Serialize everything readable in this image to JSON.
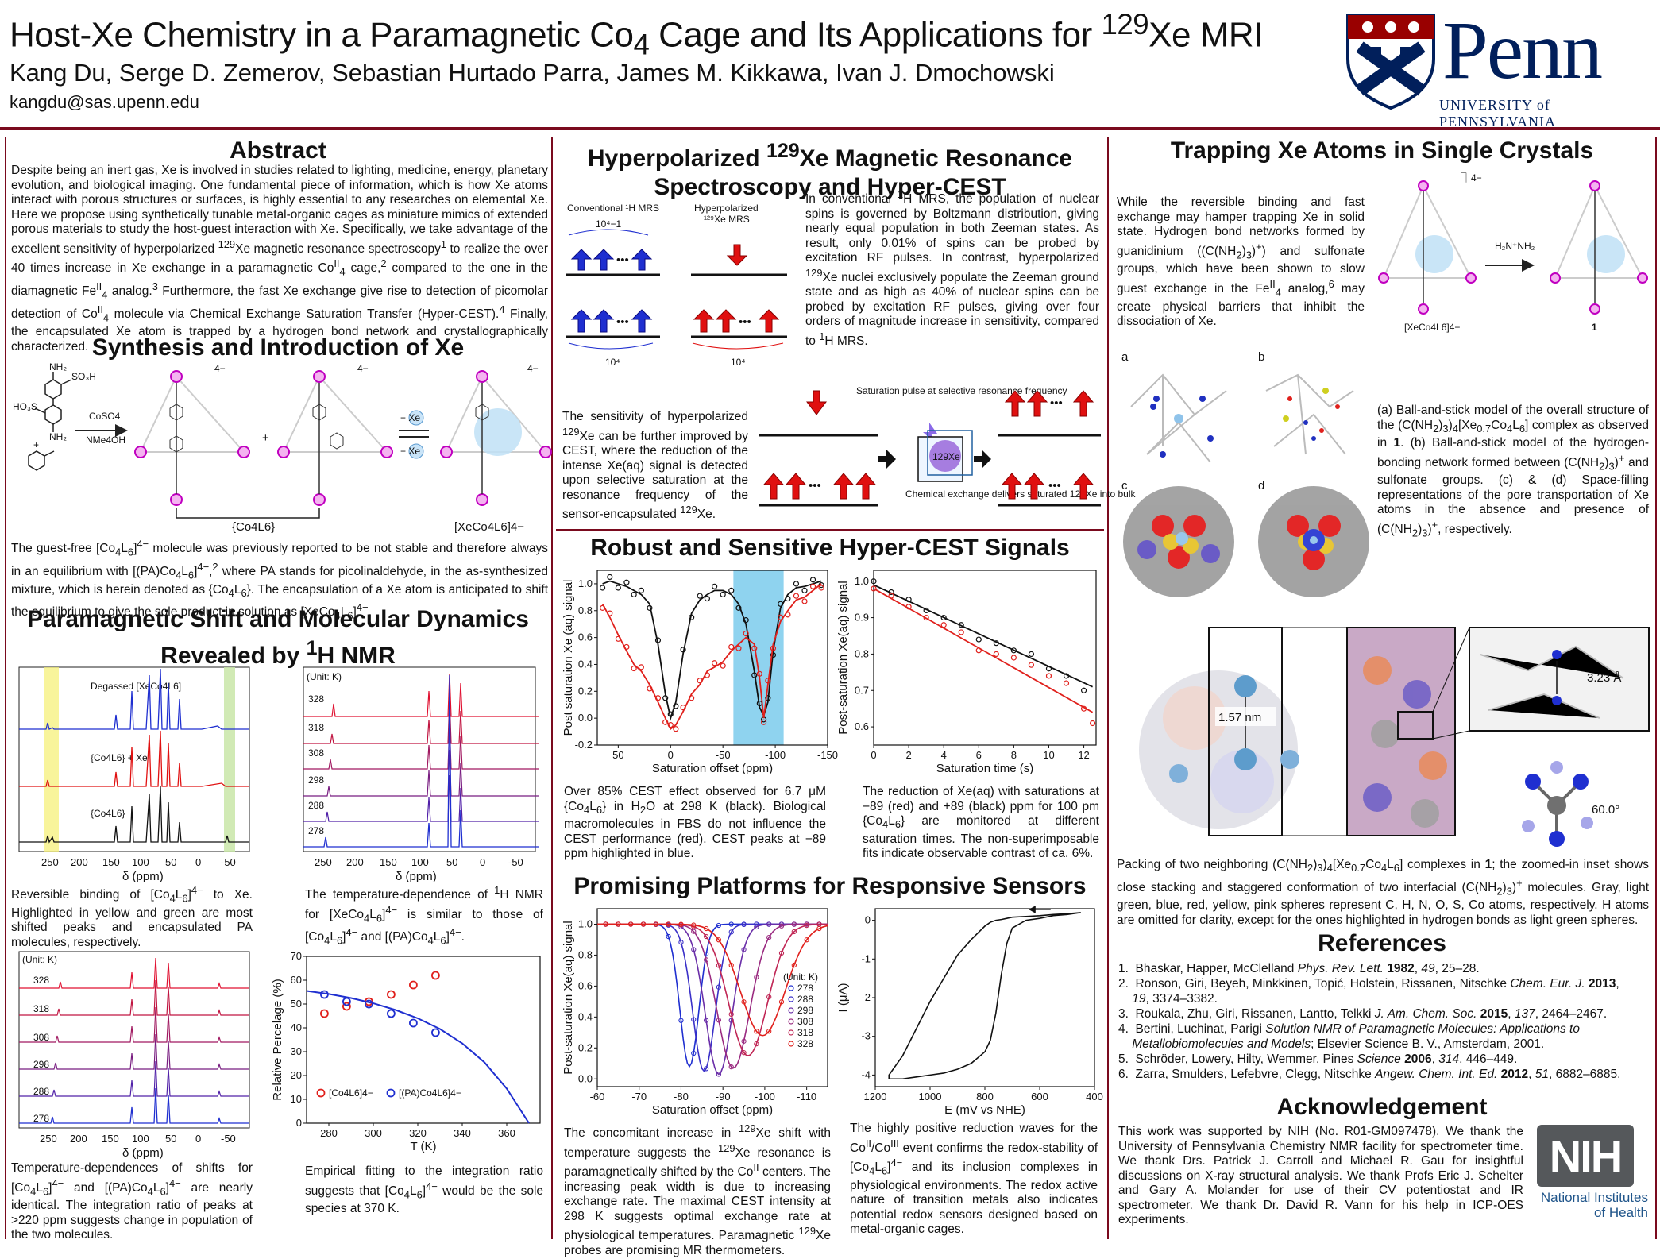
{
  "header": {
    "title_html": "Host-Xe Chemistry in a Paramagnetic Co<sub>4</sub> Cage and Its Applications for <sup>129</sup>Xe MRI",
    "authors": "Kang Du, Serge D. Zemerov, Sebastian Hurtado Parra, James M. Kikkawa, Ivan J. Dmochowski",
    "email": "kangdu@sas.upenn.edu",
    "logo_word": "Penn",
    "logo_sub": "UNIVERSITY of PENNSYLVANIA"
  },
  "abstract": {
    "title": "Abstract",
    "text_html": "Despite being an inert gas, Xe is involved in studies related to lighting, medicine, energy, planetary evolution, and biological imaging. One fundamental piece of information, which is how Xe atoms interact with porous structures or surfaces, is highly essential to any researches on elemental Xe. Here we propose using synthetically tunable metal-organic cages as miniature mimics of extended porous materials to study the host-guest interaction with Xe. Specifically, we take advantage of the excellent sensitivity of hyperpolarized <sup>129</sup>Xe magnetic resonance spectroscopy<sup>1</sup> to realize the over 40 times increase in Xe exchange in a paramagnetic Co<sup>II</sup><sub>4</sub> cage,<sup>2</sup> compared to the one in the diamagnetic Fe<sup>II</sup><sub>4</sub> analog.<sup>3</sup> Furthermore, the fast Xe exchange give rise to detection of picomolar detection of Co<sup>II</sup><sub>4</sub> molecule via Chemical Exchange Saturation Transfer (Hyper-CEST).<sup>4</sup> Finally, the encapsulated Xe atom is trapped by a hydrogen bond network and crystallographically characterized."
  },
  "synthesis": {
    "title": "Synthesis and Introduction of Xe",
    "reagent_top": "CoSO4",
    "reagent_bottom": "NMe4OH",
    "label_co4l6": "{Co4L6}",
    "label_xeco4l6": "[XeCo4L6]4−",
    "charge": "4−",
    "plus": "+",
    "xe_plus": "+ Xe",
    "xe_minus": "− Xe",
    "text_html": "The guest-free [Co<sub>4</sub>L<sub>6</sub>]<sup>4−</sup> molecule was previously reported to be not stable and therefore always in an equilibrium with [(PA)Co<sub>4</sub>L<sub>6</sub>]<sup>4−</sup>,<sup>2</sup> where PA stands for picolinaldehyde, in the as-synthesized mixture, which is herein denoted as {Co<sub>4</sub>L<sub>6</sub>}. The encapsulation of a Xe atom is anticipated to shift the equilibrium to give the sole product in solution as [XeCo<sub>4</sub>L<sub>6</sub>]<sup>4−</sup>."
  },
  "nmr": {
    "title_html": "Paramagnetic Shift and Molecular Dynamics<br>Revealed by <sup>1</sup>H NMR",
    "spec1_labels": [
      "Degassed [XeCo4L6]",
      "{Co4L6} + Xe",
      "{Co4L6}"
    ],
    "x_ticks": [
      "250",
      "200",
      "150",
      "100",
      "50",
      "0",
      "-50"
    ],
    "xlabel": "δ (ppm)",
    "unit_label": "(Unit: K)",
    "temps": [
      "328",
      "318",
      "308",
      "298",
      "288",
      "278"
    ],
    "cap1_html": "Reversible binding of [Co<sub>4</sub>L<sub>6</sub>]<sup>4−</sup> to Xe. Highlighted in yellow and green are most shifted peaks and encapsulated PA molecules, respectively.",
    "cap2_html": "The temperature-dependence of <sup>1</sup>H NMR for [XeCo<sub>4</sub>L<sub>6</sub>]<sup>4−</sup> is similar to those of [Co<sub>4</sub>L<sub>6</sub>]<sup>4−</sup> and [(PA)Co<sub>4</sub>L<sub>6</sub>]<sup>4−</sup>.",
    "cap3_html": "Temperature-dependences of shifts for [Co<sub>4</sub>L<sub>6</sub>]<sup>4−</sup> and [(PA)Co<sub>4</sub>L<sub>6</sub>]<sup>4−</sup> are nearly identical. The integration ratio of peaks at &gt;220 ppm suggests change in population of the two molecules.",
    "cap4_html": "Empirical fitting to the integration ratio suggests that [Co<sub>4</sub>L<sub>6</sub>]<sup>4−</sup> would be the sole species at 370 K."
  },
  "hyperpol": {
    "title_html": "Hyperpolarized <sup>129</sup>Xe Magnetic Resonance<br>Spectroscopy and Hyper-CEST",
    "conv_label": "Conventional 1H MRS",
    "hyp_label": "Hyperpolarized 129Xe MRS",
    "conv_ratio": "10⁴−1",
    "count_blue": "10⁴",
    "count_red": "10⁴",
    "text1_html": "In conventional <sup>1</sup>H MRS, the population of nuclear spins is governed by Boltzmann distribution, giving nearly equal population in both Zeeman states. As result, only 0.01% of spins can be probed by excitation RF pulses. In contrast, hyperpolarized <sup>129</sup>Xe nuclei exclusively populate the Zeeman ground state and as high as 40% of nuclear spins can be probed by excitation RF pulses, giving over four orders of magnitude increase in sensitivity, compared to <sup>1</sup>H MRS.",
    "text2_html": "The sensitivity of hyperpolarized <sup>129</sup>Xe can be further improved by CEST, where the reduction of the intense Xe(aq) signal is detected upon selective saturation at the resonance frequency of the sensor-encapsulated <sup>129</sup>Xe.",
    "sat_label": "Saturation pulse at selective resonance frequency",
    "exch_label": "Chemical exchange delivers saturated 129Xe into bulk",
    "xe_cube": "129Xe"
  },
  "robust": {
    "title": "Robust and Sensitive Hyper-CEST Signals",
    "left_ylabel": "Post saturation Xe (aq) signal",
    "left_xlabel": "Saturation offset (ppm)",
    "right_ylabel": "Post-saturation Xe(aq) signal",
    "right_xlabel": "Saturation time (s)",
    "cap1_html": "Over 85% CEST effect observed for 6.7 μM {Co<sub>4</sub>L<sub>6</sub>} in H<sub>2</sub>O at 298 K (black). Biological macromolecules in FBS do not influence the CEST performance (red). CEST peaks at −89 ppm highlighted in blue.",
    "cap2_html": "The reduction of Xe(aq) with saturations at −89 (red) and +89 (black) ppm for 100 pm {Co<sub>4</sub>L<sub>6</sub>} are monitored at different saturation times. The non-superimposable fits indicate observable contrast of ca. 6%."
  },
  "platforms": {
    "title": "Promising Platforms for Responsive Sensors",
    "left_ylabel": "Post-saturation Xe(aq) signal",
    "left_xlabel": "Saturation offset (ppm)",
    "legend_title": "(Unit: K)",
    "right_ylabel": "I (μA)",
    "right_xlabel": "E (mV vs NHE)",
    "cap1_html": "The concomitant increase in <sup>129</sup>Xe shift with temperature suggests the <sup>129</sup>Xe resonance is paramagnetically shifted by the Co<sup>II</sup> centers. The increasing peak width is due to increasing exchange rate. The maximal CEST intensity at 298 K suggests optimal exchange rate at physiological temperatures. Paramagnetic <sup>129</sup>Xe probes are promising MR thermometers.",
    "cap2_html": "The highly positive reduction waves for the Co<sup>II</sup>/Co<sup>III</sup> event confirms the redox-stability of [Co<sub>4</sub>L<sub>6</sub>]<sup>4−</sup> and its inclusion complexes in physiological environments. The redox active nature of transition metals also indicates potential redox sensors designed based on metal-organic cages."
  },
  "trapping": {
    "title": "Trapping Xe Atoms in Single Crystals",
    "text_html": "While the reversible binding and fast exchange may hamper trapping Xe in solid state. Hydrogen bond networks formed by guanidinium ((C(NH<sub>2</sub>)<sub>3</sub>)<sup>+</sup>) and sulfonate groups, which have been shown to slow guest exchange in the Fe<sup>II</sup><sub>4</sub> analog,<sup>6</sup> may create physical barriers that inhibit the dissociation of Xe.",
    "label_xeco4l6": "[XeCo4L6]4−",
    "label_1": "1",
    "panel_labels": [
      "a",
      "b",
      "c",
      "d"
    ],
    "cap_abcd_html": "(a) Ball-and-stick model of the overall structure of the (C(NH<sub>2</sub>)<sub>3</sub>)<sub>4</sub>[Xe<sub>0.7</sub>Co<sub>4</sub>L<sub>6</sub>] complex as observed in <b>1</b>. (b) Ball-and-stick model of the hydrogen-bonding network formed between (C(NH<sub>2</sub>)<sub>3</sub>)<sup>+</sup> and sulfonate groups. (c) &amp; (d) Space-filling representations of the pore transportation of Xe atoms in the absence and presence of (C(NH<sub>2</sub>)<sub>3</sub>)<sup>+</sup>, respectively.",
    "dist1": "1.57 nm",
    "dist2": "3.23 Å",
    "angle": "60.0°",
    "cap_pack_html": "Packing of two neighboring (C(NH<sub>2</sub>)<sub>3</sub>)<sub>4</sub>[Xe<sub>0.7</sub>Co<sub>4</sub>L<sub>6</sub>] complexes in <b>1</b>; the zoomed-in inset shows close stacking and staggered conformation of two interfacial (C(NH<sub>2</sub>)<sub>3</sub>)<sup>+</sup> molecules. Gray, light green, blue, red, yellow, pink spheres represent C, H, N, O, S, Co atoms, respectively. H atoms are omitted for clarity, except for the ones highlighted in hydrogen bonds as light green spheres."
  },
  "references": {
    "title": "References",
    "items_html": [
      "1.&nbsp; Bhaskar, Happer, McClelland <i>Phys. Rev. Lett.</i> <b>1982</b>, <i>49</i>, 25–28.",
      "2.&nbsp; Ronson, Giri, Beyeh, Minkkinen, Topić, Holstein, Rissanen, Nitschke <i>Chem. Eur. J.</i> <b>2013</b>,<br>&nbsp;&nbsp;&nbsp;&nbsp;<i>19</i>, 3374–3382.",
      "3.&nbsp; Roukala, Zhu, Giri, Rissanen, Lantto, Telkki <i>J. Am. Chem. Soc.</i> <b>2015</b>, <i>137</i>, 2464–2467.",
      "4.&nbsp; Bertini, Luchinat, Parigi <i>Solution NMR of Paramagnetic Molecules: Applications to<br>&nbsp;&nbsp;&nbsp;&nbsp;Metallobiomolecules and Models</i>; Elsevier Science B. V., Amsterdam, 2001.",
      "5.&nbsp; Schröder, Lowery, Hilty, Wemmer, Pines <i>Science</i> <b>2006</b>, <i>314</i>, 446–449.",
      "6.&nbsp; Zarra, Smulders, Lefebvre, Clegg, Nitschke <i>Angew. Chem. Int. Ed.</i> <b>2012</b>, <i>51</i>, 6882–6885."
    ]
  },
  "ack": {
    "title": "Acknowledgement",
    "text": "This work was supported by NIH (No. R01-GM097478). We thank the University of Pennsylvania Chemistry NMR facility for spectrometer time. We thank Drs. Patrick J. Carroll and Michael R. Gau for insightful discussions on X-ray structural analysis. We thank Profs Eric J. Schelter and Gary A. Molander for use of their CV potentiostat and IR spectrometer. We thank Dr. David R. Vann for his help in ICP-OES experiments.",
    "nih_logo": "NIH",
    "nih_line1": "National Institutes",
    "nih_line2": "of Health"
  },
  "chart_data": [
    {
      "type": "scatter",
      "title": "",
      "xlabel": "T (K)",
      "ylabel": "Relative Percelage (%)",
      "xlim": [
        270,
        375
      ],
      "ylim": [
        0,
        70
      ],
      "xticks": [
        280,
        300,
        320,
        340,
        360
      ],
      "yticks": [
        0,
        10,
        20,
        30,
        40,
        50,
        60,
        70
      ],
      "series": [
        {
          "name": "[Co4L6]4−",
          "color": "#e0201c",
          "x": [
            278,
            288,
            298,
            308,
            318,
            328
          ],
          "y": [
            46,
            49,
            51,
            54,
            58,
            62
          ]
        },
        {
          "name": "[(PA)Co4L6]4−",
          "color": "#1f2fd0",
          "x": [
            278,
            288,
            298,
            308,
            318,
            328
          ],
          "y": [
            54,
            51,
            50,
            46,
            42,
            38
          ]
        }
      ],
      "fit": {
        "color": "#1f2fd0",
        "x": [
          270,
          280,
          290,
          300,
          310,
          320,
          330,
          340,
          350,
          360,
          370
        ],
        "y": [
          55.5,
          54.2,
          52.5,
          50.3,
          47.5,
          44,
          39.5,
          33.5,
          25.5,
          14.5,
          0
        ]
      }
    },
    {
      "type": "line",
      "title": "",
      "xlabel": "Saturation offset (ppm)",
      "ylabel": "Post saturation Xe (aq) signal",
      "xlim": [
        70,
        -150
      ],
      "ylim": [
        -0.2,
        1.1
      ],
      "xticks": [
        50,
        0,
        -50,
        -100,
        -150
      ],
      "yticks": [
        -0.2,
        0.0,
        0.2,
        0.4,
        0.6,
        0.8,
        1.0
      ],
      "highlight": [
        -60,
        -108
      ],
      "series": [
        {
          "name": "black",
          "color": "#111111",
          "x": [
            65,
            58,
            50,
            42,
            35,
            28,
            20,
            12,
            5,
            0,
            -5,
            -12,
            -20,
            -28,
            -35,
            -42,
            -50,
            -58,
            -65,
            -72,
            -80,
            -85,
            -89,
            -93,
            -98,
            -105,
            -112,
            -120,
            -128,
            -136,
            -144
          ],
          "y": [
            1.0,
            1.02,
            1.0,
            0.98,
            0.95,
            0.92,
            0.85,
            0.55,
            0.18,
            0.0,
            0.12,
            0.48,
            0.78,
            0.88,
            0.92,
            0.95,
            0.95,
            0.92,
            0.85,
            0.7,
            0.35,
            0.08,
            0.02,
            0.12,
            0.5,
            0.82,
            0.92,
            0.97,
            0.98,
            1.0,
            1.02
          ]
        },
        {
          "name": "red",
          "color": "#e0201c",
          "x": [
            65,
            58,
            50,
            42,
            35,
            28,
            20,
            12,
            5,
            0,
            -5,
            -12,
            -20,
            -28,
            -35,
            -42,
            -50,
            -58,
            -65,
            -72,
            -80,
            -85,
            -89,
            -93,
            -98,
            -105,
            -112,
            -120,
            -128,
            -136,
            -144
          ],
          "y": [
            0.85,
            0.75,
            0.62,
            0.5,
            0.4,
            0.35,
            0.25,
            0.12,
            0.0,
            -0.08,
            -0.05,
            0.05,
            0.18,
            0.25,
            0.35,
            0.38,
            0.42,
            0.5,
            0.55,
            0.6,
            0.55,
            0.3,
            0.0,
            0.25,
            0.55,
            0.72,
            0.8,
            0.88,
            0.9,
            0.95,
            1.0
          ]
        }
      ]
    },
    {
      "type": "scatter",
      "title": "",
      "xlabel": "Saturation time (s)",
      "ylabel": "Post-saturation Xe(aq) signal",
      "xlim": [
        0,
        12.7
      ],
      "ylim": [
        0.55,
        1.03
      ],
      "xticks": [
        0,
        2,
        4,
        6,
        8,
        10,
        12
      ],
      "yticks": [
        0.6,
        0.7,
        0.8,
        0.9,
        1.0
      ],
      "series": [
        {
          "name": "black",
          "color": "#111111",
          "x": [
            0,
            1,
            2,
            3,
            4,
            5,
            6,
            7,
            8,
            9,
            10,
            11,
            12
          ],
          "y": [
            1.0,
            0.97,
            0.95,
            0.92,
            0.9,
            0.88,
            0.84,
            0.83,
            0.81,
            0.8,
            0.76,
            0.74,
            0.7
          ]
        },
        {
          "name": "red",
          "color": "#e0201c",
          "x": [
            0,
            1,
            2,
            3,
            4,
            5,
            6,
            7,
            8,
            9,
            10,
            11,
            12,
            12.5
          ],
          "y": [
            0.98,
            0.96,
            0.93,
            0.9,
            0.88,
            0.86,
            0.81,
            0.8,
            0.79,
            0.77,
            0.74,
            0.72,
            0.65,
            0.61
          ]
        }
      ],
      "fits": [
        {
          "color": "#111111",
          "x": [
            0,
            12.5
          ],
          "y": [
            0.99,
            0.71
          ]
        },
        {
          "color": "#e0201c",
          "x": [
            0,
            12.5
          ],
          "y": [
            0.98,
            0.64
          ]
        }
      ]
    },
    {
      "type": "line",
      "title": "",
      "xlabel": "Saturation offset (ppm)",
      "ylabel": "Post-saturation Xe(aq) signal",
      "xlim": [
        -60,
        -115
      ],
      "ylim": [
        -0.05,
        1.1
      ],
      "xticks": [
        -60,
        -70,
        -80,
        -90,
        -100,
        -110
      ],
      "yticks": [
        0.0,
        0.2,
        0.4,
        0.6,
        0.8,
        1.0
      ],
      "legend_position": "right",
      "series": [
        {
          "name": "278",
          "color": "#1f2fd0",
          "center": -82,
          "width": 3.2,
          "depth": 0.92
        },
        {
          "name": "288",
          "color": "#3a30c8",
          "center": -85.5,
          "width": 3.8,
          "depth": 0.95
        },
        {
          "name": "298",
          "color": "#6a2ea8",
          "center": -89,
          "width": 4.5,
          "depth": 0.97
        },
        {
          "name": "308",
          "color": "#9a2a80",
          "center": -92.5,
          "width": 5.5,
          "depth": 0.93
        },
        {
          "name": "318",
          "color": "#c02655",
          "center": -96,
          "width": 6.5,
          "depth": 0.85
        },
        {
          "name": "328",
          "color": "#e0201c",
          "center": -99.5,
          "width": 7.5,
          "depth": 0.72
        }
      ]
    },
    {
      "type": "line",
      "title": "",
      "xlabel": "E (mV vs NHE)",
      "ylabel": "I (μA)",
      "xlim": [
        1200,
        400
      ],
      "ylim": [
        -4.3,
        0.3
      ],
      "xticks": [
        1200,
        1000,
        800,
        600,
        400
      ],
      "yticks": [
        0,
        -1,
        -2,
        -3,
        -4
      ],
      "series": [
        {
          "name": "cv",
          "color": "#111111",
          "x": [
            450,
            500,
            550,
            600,
            650,
            700,
            720,
            740,
            760,
            780,
            800,
            850,
            900,
            950,
            1000,
            1050,
            1100,
            1150,
            1150,
            1100,
            1050,
            1000,
            950,
            900,
            850,
            800,
            780,
            760,
            740,
            720,
            700,
            650,
            600,
            550,
            500,
            450,
            450
          ],
          "y": [
            0.2,
            0.15,
            0.12,
            0.05,
            0.0,
            -0.2,
            -0.6,
            -1.4,
            -2.4,
            -3.1,
            -3.4,
            -3.7,
            -3.85,
            -3.95,
            -4.0,
            -4.05,
            -4.1,
            -4.1,
            -4.0,
            -3.5,
            -2.8,
            -2.1,
            -1.5,
            -0.9,
            -0.5,
            -0.15,
            -0.05,
            0.0,
            0.02,
            0.05,
            0.08,
            0.1,
            0.12,
            0.15,
            0.17,
            0.2,
            0.2
          ]
        }
      ]
    }
  ]
}
